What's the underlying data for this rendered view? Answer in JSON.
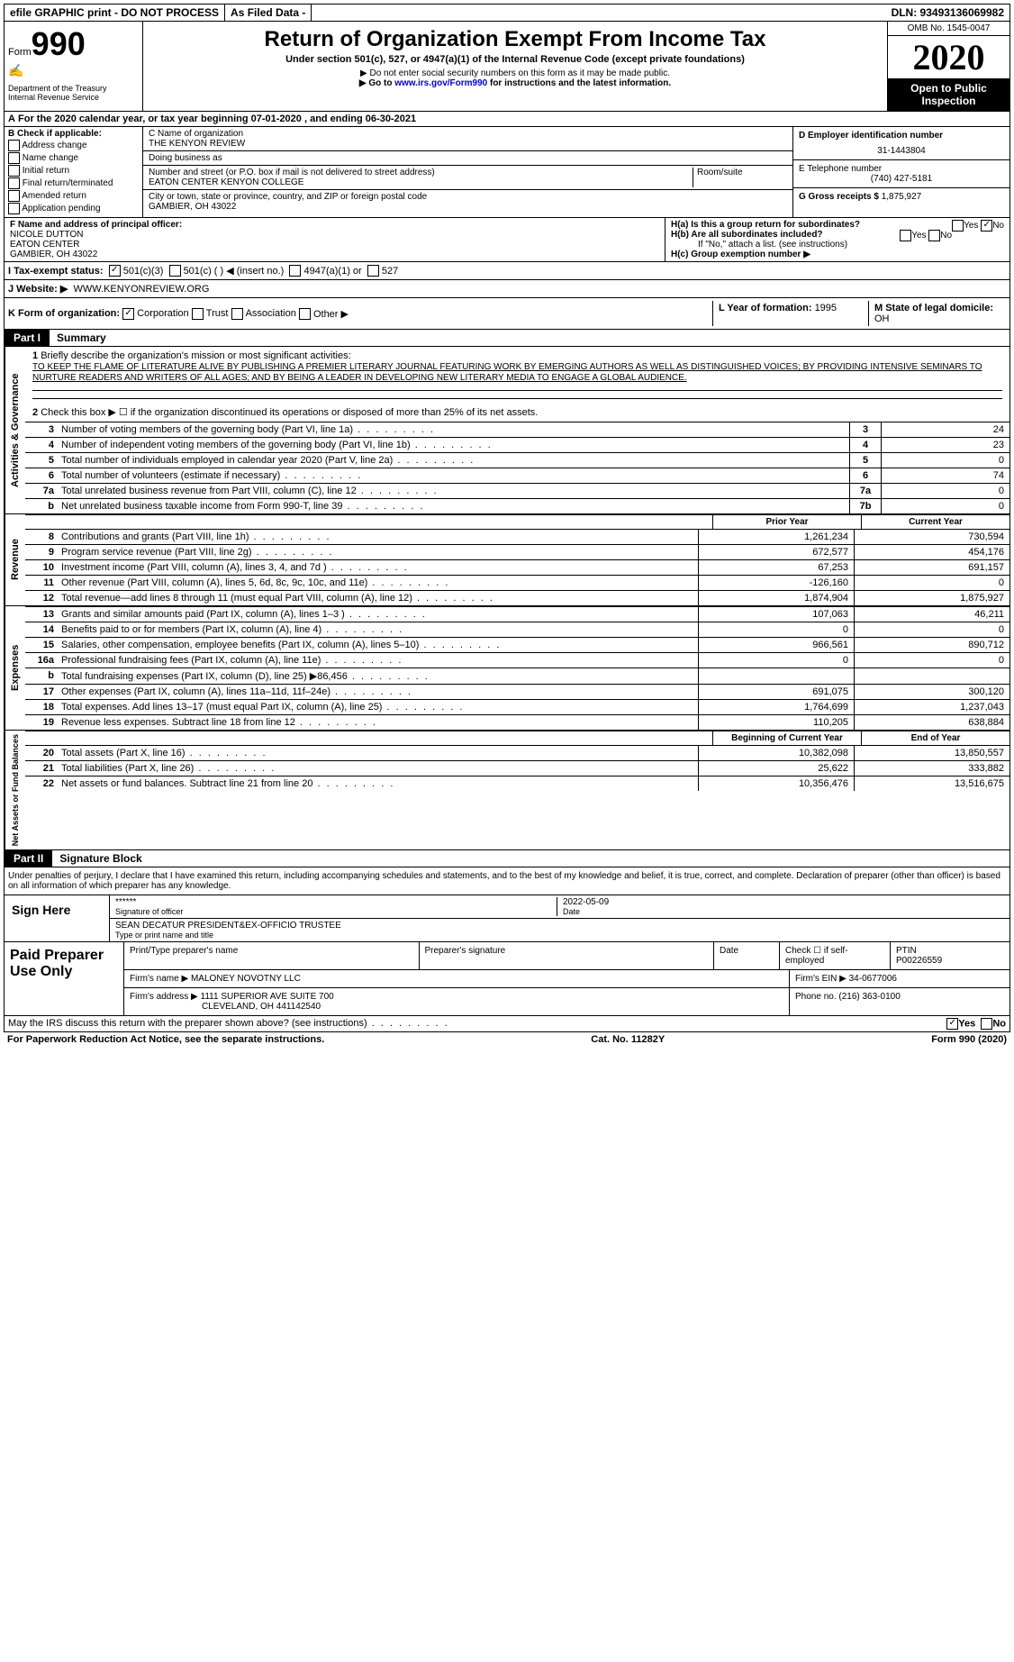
{
  "topbar": {
    "efile": "efile GRAPHIC print - DO NOT PROCESS",
    "asfiled": "As Filed Data -",
    "dln": "DLN: 93493136069982"
  },
  "header": {
    "form_prefix": "Form",
    "form_number": "990",
    "dept": "Department of the Treasury",
    "irs": "Internal Revenue Service",
    "title": "Return of Organization Exempt From Income Tax",
    "subtitle": "Under section 501(c), 527, or 4947(a)(1) of the Internal Revenue Code (except private foundations)",
    "note1": "▶ Do not enter social security numbers on this form as it may be made public.",
    "note2_pre": "▶ Go to ",
    "note2_link": "www.irs.gov/Form990",
    "note2_post": " for instructions and the latest information.",
    "omb": "OMB No. 1545-0047",
    "year": "2020",
    "inspection": "Open to Public Inspection"
  },
  "rowA": {
    "label": "A",
    "text_pre": "For the 2020 calendar year, or tax year beginning ",
    "begin": "07-01-2020",
    "mid": " , and ending ",
    "end": "06-30-2021"
  },
  "colB": {
    "label": "B Check if applicable:",
    "opts": [
      "Address change",
      "Name change",
      "Initial return",
      "Final return/terminated",
      "Amended return",
      "Application pending"
    ]
  },
  "colC": {
    "name_label": "C Name of organization",
    "name": "THE KENYON REVIEW",
    "dba_label": "Doing business as",
    "dba": "",
    "addr_label": "Number and street (or P.O. box if mail is not delivered to street address)",
    "addr": "EATON CENTER KENYON COLLEGE",
    "room_label": "Room/suite",
    "city_label": "City or town, state or province, country, and ZIP or foreign postal code",
    "city": "GAMBIER, OH  43022"
  },
  "colD": {
    "ein_label": "D Employer identification number",
    "ein": "31-1443804",
    "phone_label": "E Telephone number",
    "phone": "(740) 427-5181",
    "gross_label": "G Gross receipts $ ",
    "gross": "1,875,927"
  },
  "rowF": {
    "label": "F  Name and address of principal officer:",
    "name": "NICOLE DUTTON",
    "addr1": "EATON CENTER",
    "addr2": "GAMBIER, OH  43022"
  },
  "rowH": {
    "ha": "H(a)  Is this a group return for subordinates?",
    "hb": "H(b)  Are all subordinates included?",
    "hb_note": "If \"No,\" attach a list. (see instructions)",
    "hc": "H(c)  Group exemption number ▶",
    "yes": "Yes",
    "no": "No"
  },
  "rowI": {
    "label": "I   Tax-exempt status:",
    "o1": "501(c)(3)",
    "o2": "501(c) (  ) ◀ (insert no.)",
    "o3": "4947(a)(1) or",
    "o4": "527"
  },
  "rowJ": {
    "label": "J   Website: ▶",
    "val": "WWW.KENYONREVIEW.ORG"
  },
  "rowK": {
    "label": "K Form of organization:",
    "o1": "Corporation",
    "o2": "Trust",
    "o3": "Association",
    "o4": "Other ▶",
    "L_label": "L Year of formation: ",
    "L_val": "1995",
    "M_label": "M State of legal domicile:",
    "M_val": "OH"
  },
  "part1": {
    "hdr": "Part I",
    "title": "Summary",
    "q1": "Briefly describe the organization's mission or most significant activities:",
    "mission": "TO KEEP THE FLAME OF LITERATURE ALIVE BY PUBLISHING A PREMIER LITERARY JOURNAL FEATURING WORK BY EMERGING AUTHORS AS WELL AS DISTINGUISHED VOICES; BY PROVIDING INTENSIVE SEMINARS TO NURTURE READERS AND WRITERS OF ALL AGES; AND BY BEING A LEADER IN DEVELOPING NEW LITERARY MEDIA TO ENGAGE A GLOBAL AUDIENCE.",
    "q2": "Check this box ▶ ☐ if the organization discontinued its operations or disposed of more than 25% of its net assets.",
    "lines_single": [
      {
        "n": "3",
        "t": "Number of voting members of the governing body (Part VI, line 1a)",
        "c": "3",
        "v": "24"
      },
      {
        "n": "4",
        "t": "Number of independent voting members of the governing body (Part VI, line 1b)",
        "c": "4",
        "v": "23"
      },
      {
        "n": "5",
        "t": "Total number of individuals employed in calendar year 2020 (Part V, line 2a)",
        "c": "5",
        "v": "0"
      },
      {
        "n": "6",
        "t": "Total number of volunteers (estimate if necessary)",
        "c": "6",
        "v": "74"
      },
      {
        "n": "7a",
        "t": "Total unrelated business revenue from Part VIII, column (C), line 12",
        "c": "7a",
        "v": "0"
      },
      {
        "n": "b",
        "t": "Net unrelated business taxable income from Form 990-T, line 39",
        "c": "7b",
        "v": "0"
      }
    ],
    "vert1": "Activities & Governance",
    "py": "Prior Year",
    "cy": "Current Year",
    "revenue_label": "Revenue",
    "revenue": [
      {
        "n": "8",
        "t": "Contributions and grants (Part VIII, line 1h)",
        "p": "1,261,234",
        "c": "730,594"
      },
      {
        "n": "9",
        "t": "Program service revenue (Part VIII, line 2g)",
        "p": "672,577",
        "c": "454,176"
      },
      {
        "n": "10",
        "t": "Investment income (Part VIII, column (A), lines 3, 4, and 7d )",
        "p": "67,253",
        "c": "691,157"
      },
      {
        "n": "11",
        "t": "Other revenue (Part VIII, column (A), lines 5, 6d, 8c, 9c, 10c, and 11e)",
        "p": "-126,160",
        "c": "0"
      },
      {
        "n": "12",
        "t": "Total revenue—add lines 8 through 11 (must equal Part VIII, column (A), line 12)",
        "p": "1,874,904",
        "c": "1,875,927"
      }
    ],
    "expenses_label": "Expenses",
    "expenses": [
      {
        "n": "13",
        "t": "Grants and similar amounts paid (Part IX, column (A), lines 1–3 )",
        "p": "107,063",
        "c": "46,211"
      },
      {
        "n": "14",
        "t": "Benefits paid to or for members (Part IX, column (A), line 4)",
        "p": "0",
        "c": "0"
      },
      {
        "n": "15",
        "t": "Salaries, other compensation, employee benefits (Part IX, column (A), lines 5–10)",
        "p": "966,561",
        "c": "890,712"
      },
      {
        "n": "16a",
        "t": "Professional fundraising fees (Part IX, column (A), line 11e)",
        "p": "0",
        "c": "0"
      },
      {
        "n": "b",
        "t": "Total fundraising expenses (Part IX, column (D), line 25) ▶86,456",
        "p": "",
        "c": ""
      },
      {
        "n": "17",
        "t": "Other expenses (Part IX, column (A), lines 11a–11d, 11f–24e)",
        "p": "691,075",
        "c": "300,120"
      },
      {
        "n": "18",
        "t": "Total expenses. Add lines 13–17 (must equal Part IX, column (A), line 25)",
        "p": "1,764,699",
        "c": "1,237,043"
      },
      {
        "n": "19",
        "t": "Revenue less expenses. Subtract line 18 from line 12",
        "p": "110,205",
        "c": "638,884"
      }
    ],
    "net_label": "Net Assets or Fund Balances",
    "bcy": "Beginning of Current Year",
    "eoy": "End of Year",
    "net": [
      {
        "n": "20",
        "t": "Total assets (Part X, line 16)",
        "p": "10,382,098",
        "c": "13,850,557"
      },
      {
        "n": "21",
        "t": "Total liabilities (Part X, line 26)",
        "p": "25,622",
        "c": "333,882"
      },
      {
        "n": "22",
        "t": "Net assets or fund balances. Subtract line 21 from line 20",
        "p": "10,356,476",
        "c": "13,516,675"
      }
    ]
  },
  "part2": {
    "hdr": "Part II",
    "title": "Signature Block",
    "perjury": "Under penalties of perjury, I declare that I have examined this return, including accompanying schedules and statements, and to the best of my knowledge and belief, it is true, correct, and complete. Declaration of preparer (other than officer) is based on all information of which preparer has any knowledge.",
    "sign_here": "Sign Here",
    "stars": "******",
    "sig_officer": "Signature of officer",
    "date": "2022-05-09",
    "date_label": "Date",
    "officer_name": "SEAN DECATUR  PRESIDENT&EX-OFFICIO TRUSTEE",
    "type_name": "Type or print name and title",
    "paid": "Paid Preparer Use Only",
    "prep_name_label": "Print/Type preparer's name",
    "prep_sig_label": "Preparer's signature",
    "check_self": "Check ☐  if self-employed",
    "ptin_label": "PTIN",
    "ptin": "P00226559",
    "firm_name_label": "Firm's name    ▶ ",
    "firm_name": "MALONEY NOVOTNY LLC",
    "firm_ein_label": "Firm's EIN ▶ ",
    "firm_ein": "34-0677006",
    "firm_addr_label": "Firm's address ▶ ",
    "firm_addr1": "1111 SUPERIOR AVE SUITE 700",
    "firm_addr2": "CLEVELAND, OH  441142540",
    "firm_phone_label": "Phone no. ",
    "firm_phone": "(216) 363-0100",
    "may_irs": "May the IRS discuss this return with the preparer shown above? (see instructions)",
    "paperwork": "For Paperwork Reduction Act Notice, see the separate instructions.",
    "catno": "Cat. No. 11282Y",
    "form_footer": "Form 990 (2020)"
  }
}
